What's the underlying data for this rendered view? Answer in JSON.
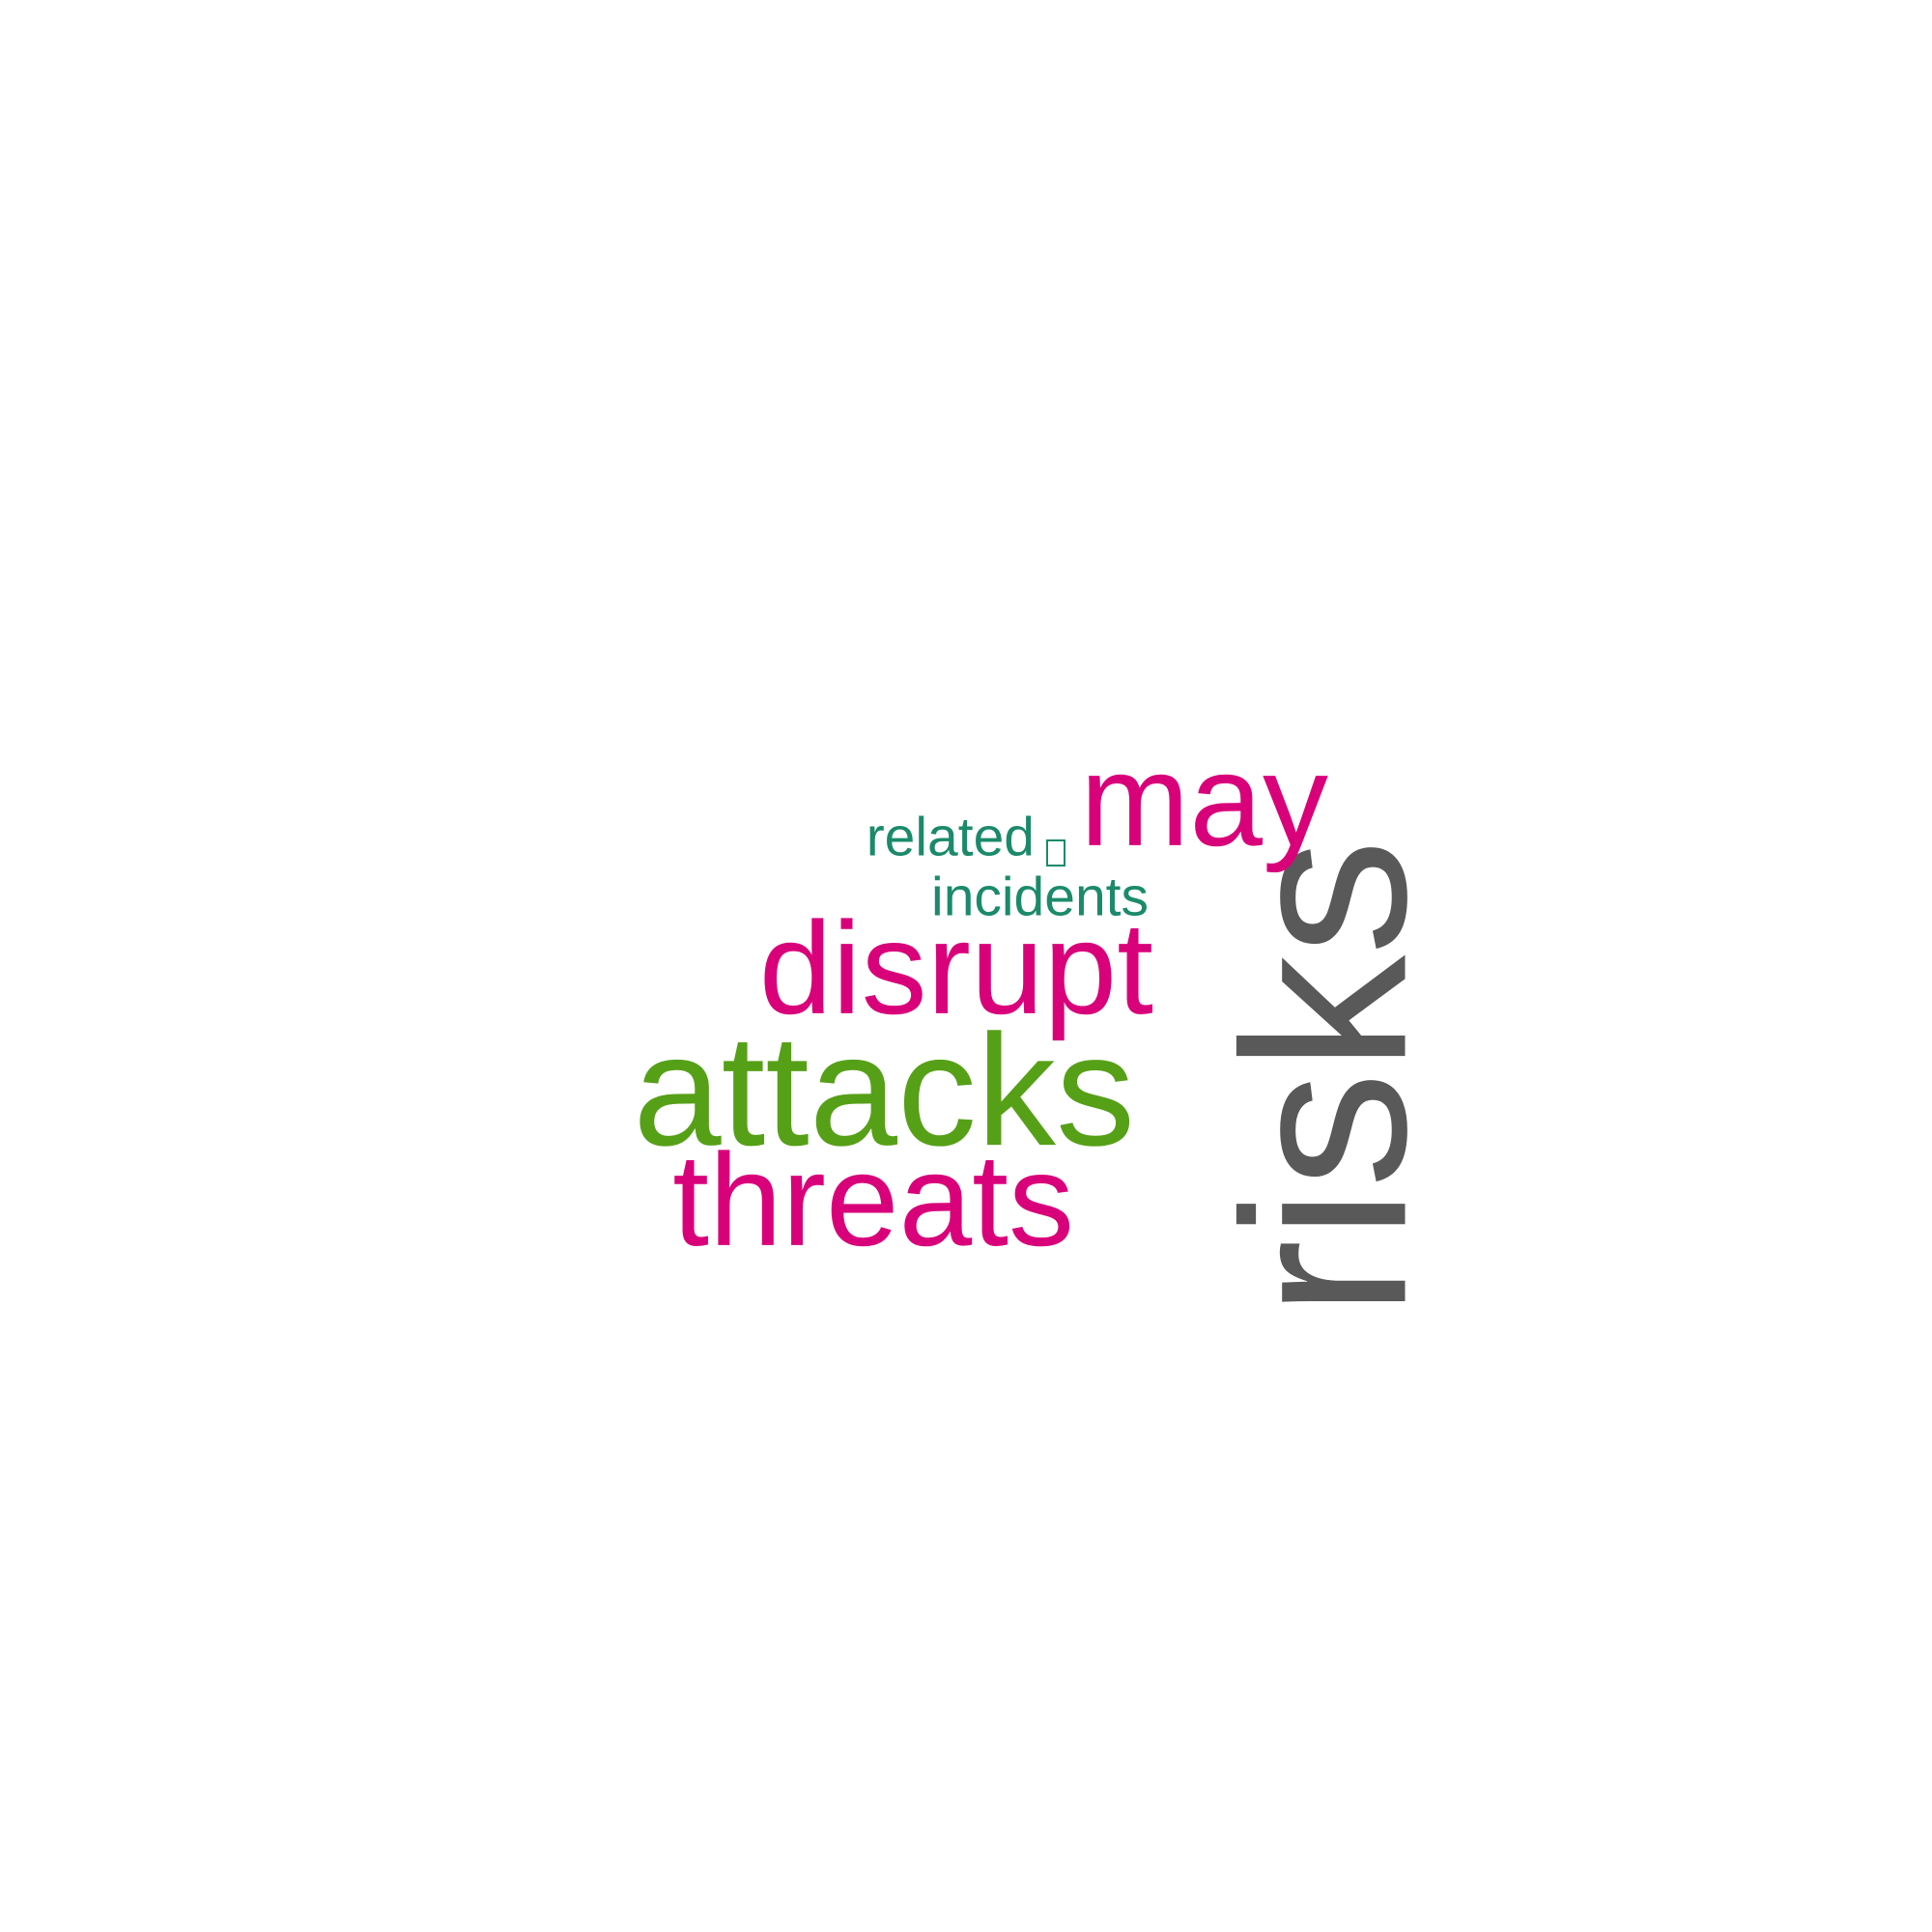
{
  "words": [
    {
      "id": "risks",
      "text": "risks",
      "color": "#595959",
      "orientation": "vertical"
    },
    {
      "id": "attacks",
      "text": "attacks",
      "color": "#56a018",
      "orientation": "horizontal"
    },
    {
      "id": "threats",
      "text": "threats",
      "color": "#d9017a",
      "orientation": "horizontal"
    },
    {
      "id": "disrupt",
      "text": "disrupt",
      "color": "#d9017a",
      "orientation": "horizontal"
    },
    {
      "id": "may",
      "text": "may",
      "color": "#d9017a",
      "orientation": "horizontal"
    },
    {
      "id": "related",
      "text": "related",
      "color": "#1b8a6b",
      "orientation": "horizontal"
    },
    {
      "id": "incidents",
      "text": "incidents",
      "color": "#1b8a6b",
      "orientation": "horizontal"
    }
  ]
}
